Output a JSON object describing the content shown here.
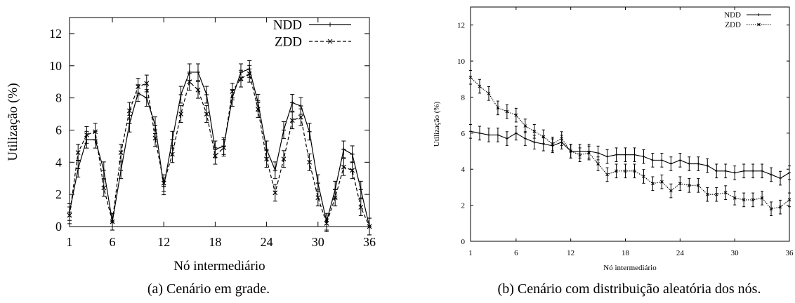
{
  "chart_data": [
    {
      "type": "line",
      "caption": "(a) Cenário em grade.",
      "xlabel": "Nó intermediário",
      "ylabel": "Utilização (%)",
      "xlim": [
        1,
        36
      ],
      "ylim": [
        0,
        13
      ],
      "xticks": [
        1,
        6,
        12,
        18,
        24,
        30,
        36
      ],
      "yticks": [
        0,
        2,
        4,
        6,
        8,
        10,
        12
      ],
      "legend_position": "top-right",
      "x": [
        1,
        2,
        3,
        4,
        5,
        6,
        7,
        8,
        9,
        10,
        11,
        12,
        13,
        14,
        15,
        16,
        17,
        18,
        19,
        20,
        21,
        22,
        23,
        24,
        25,
        26,
        27,
        28,
        29,
        30,
        31,
        32,
        33,
        34,
        35,
        36
      ],
      "series": [
        {
          "name": "NDD",
          "style": "solid",
          "marker": "+",
          "values": [
            0.9,
            3.6,
            5.4,
            5.4,
            3.5,
            0.3,
            3.5,
            6.4,
            8.3,
            8.0,
            6.3,
            2.5,
            5.4,
            8.2,
            9.6,
            9.6,
            8.2,
            4.8,
            5.0,
            8.0,
            9.6,
            9.8,
            7.7,
            4.8,
            3.5,
            6.0,
            7.7,
            7.5,
            5.9,
            2.7,
            0.3,
            2.3,
            4.8,
            4.5,
            2.3,
            0.0
          ]
        },
        {
          "name": "ZDD",
          "style": "dashed",
          "marker": "x",
          "values": [
            0.7,
            4.6,
            5.7,
            5.9,
            2.4,
            0.3,
            4.6,
            7.2,
            8.7,
            8.9,
            5.5,
            2.7,
            4.5,
            7.0,
            9.0,
            8.5,
            7.0,
            4.4,
            4.9,
            8.4,
            9.2,
            9.5,
            7.3,
            4.2,
            2.1,
            4.2,
            6.6,
            6.8,
            4.0,
            1.8,
            0.2,
            1.8,
            3.7,
            3.5,
            1.2,
            0.0
          ]
        }
      ]
    },
    {
      "type": "line",
      "caption": "(b) Cenário com distribuição aleatória dos nós.",
      "xlabel": "Nó intermediário",
      "ylabel": "Utilização (%)",
      "xlim": [
        1,
        36
      ],
      "ylim": [
        0,
        13
      ],
      "xticks": [
        1,
        6,
        12,
        18,
        24,
        30,
        36
      ],
      "yticks": [
        0,
        2,
        4,
        6,
        8,
        10,
        12
      ],
      "legend_position": "top-right",
      "x": [
        1,
        2,
        3,
        4,
        5,
        6,
        7,
        8,
        9,
        10,
        11,
        12,
        13,
        14,
        15,
        16,
        17,
        18,
        19,
        20,
        21,
        22,
        23,
        24,
        25,
        26,
        27,
        28,
        29,
        30,
        31,
        32,
        33,
        34,
        35,
        36
      ],
      "series": [
        {
          "name": "NDD",
          "style": "solid",
          "marker": "+",
          "values": [
            6.1,
            6.0,
            5.9,
            5.9,
            5.7,
            6.0,
            5.7,
            5.5,
            5.4,
            5.3,
            5.5,
            5.0,
            5.0,
            5.0,
            4.9,
            4.7,
            4.8,
            4.8,
            4.8,
            4.7,
            4.5,
            4.5,
            4.3,
            4.5,
            4.3,
            4.3,
            4.2,
            3.9,
            3.9,
            3.8,
            3.9,
            3.9,
            3.9,
            3.7,
            3.5,
            3.8
          ]
        },
        {
          "name": "ZDD",
          "style": "dotted",
          "marker": "x",
          "values": [
            9.1,
            8.6,
            8.2,
            7.4,
            7.2,
            7.0,
            6.4,
            6.1,
            5.8,
            5.4,
            5.7,
            5.0,
            4.8,
            4.9,
            4.3,
            3.7,
            3.9,
            3.9,
            3.9,
            3.6,
            3.2,
            3.3,
            2.8,
            3.2,
            3.1,
            3.1,
            2.6,
            2.6,
            2.7,
            2.4,
            2.3,
            2.3,
            2.4,
            1.8,
            1.9,
            2.3
          ]
        }
      ]
    }
  ]
}
